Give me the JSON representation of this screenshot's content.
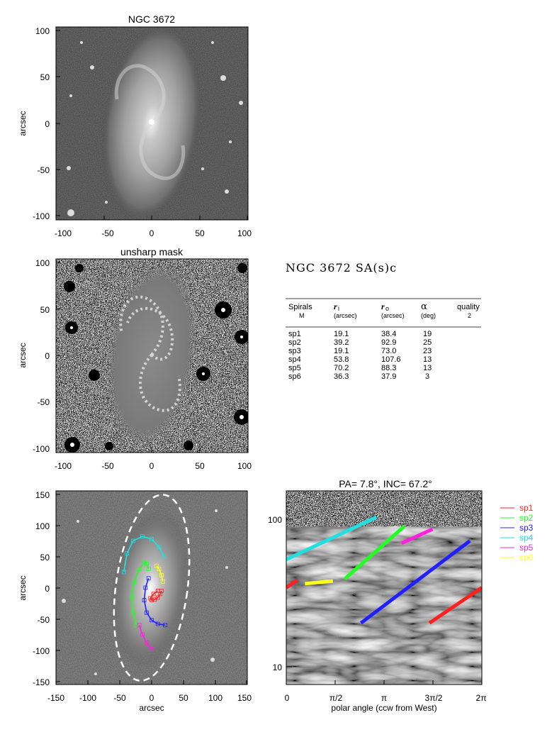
{
  "colors": {
    "sp1": "#ff2020",
    "sp2": "#20ff20",
    "sp3": "#2020ff",
    "sp4": "#20e0e0",
    "sp5": "#ff20e0",
    "sp6": "#ffff20"
  },
  "panel1": {
    "title": "NGC 3672",
    "ylabel": "arcsec",
    "xticks": [
      "-100",
      "-50",
      "0",
      "50",
      "100"
    ],
    "yticks": [
      "100",
      "50",
      "0",
      "-50",
      "-100"
    ]
  },
  "panel2": {
    "title": "unsharp mask",
    "ylabel": "arcsec",
    "xticks": [
      "-100",
      "-50",
      "0",
      "50",
      "100"
    ],
    "yticks": [
      "100",
      "50",
      "0",
      "-50",
      "-100"
    ]
  },
  "panel3": {
    "xlabel": "arcsec",
    "ylabel": "arcsec",
    "xticks": [
      "-150",
      "-100",
      "-50",
      "0",
      "50",
      "100",
      "150"
    ],
    "yticks": [
      "150",
      "100",
      "50",
      "0",
      "-50",
      "-100",
      "-150"
    ]
  },
  "panel4": {
    "title": "PA=   7.8°, INC=  67.2°",
    "xlabel": "polar angle (ccw from West)",
    "xticks": [
      "0",
      "π/2",
      "π",
      "3π/2",
      "2π"
    ],
    "yticks": [
      "100",
      "10"
    ],
    "legend": [
      "sp1",
      "sp2",
      "sp3",
      "sp4",
      "sp5",
      "sp6"
    ]
  },
  "table": {
    "title": "NGC 3672  SA(s)c",
    "headers": {
      "spirals": "Spirals",
      "m": "M",
      "ri": "r",
      "ri_sub": "i",
      "ri_unit": "(arcsec)",
      "ro": "r",
      "ro_sub": "o",
      "ro_unit": "(arcsec)",
      "alpha": "α",
      "alpha_unit": "(deg)",
      "quality": "quality",
      "quality_value": "2"
    },
    "rows": [
      {
        "name": "sp1",
        "ri": "19.1",
        "ro": "38.4",
        "alpha": "19"
      },
      {
        "name": "sp2",
        "ri": "39.2",
        "ro": "92.9",
        "alpha": "25"
      },
      {
        "name": "sp3",
        "ri": "19.1",
        "ro": "73.0",
        "alpha": "23"
      },
      {
        "name": "sp4",
        "ri": "53.8",
        "ro": "107.6",
        "alpha": "13"
      },
      {
        "name": "sp5",
        "ri": "70.2",
        "ro": "88.3",
        "alpha": "13"
      },
      {
        "name": "sp6",
        "ri": "36.3",
        "ro": "37.9",
        "alpha": "3"
      }
    ]
  },
  "chart_data": [
    {
      "type": "heatmap",
      "title": "NGC 3672",
      "xlabel": "",
      "ylabel": "arcsec",
      "xlim": [
        -105,
        105
      ],
      "ylim": [
        -105,
        105
      ],
      "image": "galaxy image (grayscale)"
    },
    {
      "type": "heatmap",
      "title": "unsharp mask",
      "xlabel": "",
      "ylabel": "arcsec",
      "xlim": [
        -105,
        105
      ],
      "ylim": [
        -105,
        105
      ],
      "image": "unsharp mask (grayscale)"
    },
    {
      "type": "scatter",
      "xlabel": "arcsec",
      "ylabel": "arcsec",
      "xlim": [
        -155,
        155
      ],
      "ylim": [
        -155,
        155
      ],
      "ellipse": {
        "center": [
          0,
          0
        ],
        "semi_major": 150,
        "semi_minor": 58,
        "pa_deg": 7.8
      },
      "series": [
        {
          "name": "sp1",
          "x": [
            16,
            14,
            10,
            5,
            0,
            -2,
            3,
            10
          ],
          "y": [
            -5,
            -10,
            -16,
            -19,
            -20,
            -17,
            -10,
            -5
          ]
        },
        {
          "name": "sp2",
          "x": [
            -25,
            -30,
            -32,
            -28,
            -20,
            -12,
            -8,
            -5
          ],
          "y": [
            -60,
            -40,
            -15,
            10,
            30,
            40,
            38,
            30
          ]
        },
        {
          "name": "sp3",
          "x": [
            -5,
            -10,
            -12,
            -8,
            0,
            10,
            22
          ],
          "y": [
            15,
            0,
            -20,
            -40,
            -52,
            -58,
            -60
          ]
        },
        {
          "name": "sp4",
          "x": [
            -45,
            -40,
            -30,
            -15,
            0,
            12,
            20
          ],
          "y": [
            25,
            55,
            75,
            82,
            78,
            65,
            50
          ]
        },
        {
          "name": "sp5",
          "x": [
            -20,
            -15,
            -8,
            0
          ],
          "y": [
            -60,
            -75,
            -88,
            -98
          ]
        },
        {
          "name": "sp6",
          "x": [
            8,
            12,
            16,
            18
          ],
          "y": [
            35,
            30,
            20,
            10
          ]
        }
      ]
    },
    {
      "type": "line",
      "title": "PA=   7.8°, INC=  67.2°",
      "xlabel": "polar angle (ccw from West)",
      "ylabel": "",
      "xlim": [
        0,
        6.2832
      ],
      "ylim": [
        7,
        165
      ],
      "yscale": "log",
      "xticks": [
        "0",
        "π/2",
        "π",
        "3π/2",
        "2π"
      ],
      "yticks": [
        "100",
        "10"
      ],
      "legend": "right",
      "series": [
        {
          "name": "sp1",
          "x": [
            4.6,
            6.28
          ],
          "y": [
            19.1,
            34
          ]
        },
        {
          "name": "sp1",
          "x": [
            0.0,
            0.35
          ],
          "y": [
            34,
            38.4
          ]
        },
        {
          "name": "sp2",
          "x": [
            1.88,
            3.8
          ],
          "y": [
            39.2,
            92.9
          ]
        },
        {
          "name": "sp3",
          "x": [
            2.4,
            5.9
          ],
          "y": [
            19.1,
            73.0
          ]
        },
        {
          "name": "sp4",
          "x": [
            0.0,
            2.9
          ],
          "y": [
            53.8,
            107.6
          ]
        },
        {
          "name": "sp5",
          "x": [
            3.7,
            4.7
          ],
          "y": [
            70.2,
            88.3
          ]
        },
        {
          "name": "sp6",
          "x": [
            0.6,
            1.5
          ],
          "y": [
            36.3,
            37.9
          ]
        }
      ]
    }
  ]
}
